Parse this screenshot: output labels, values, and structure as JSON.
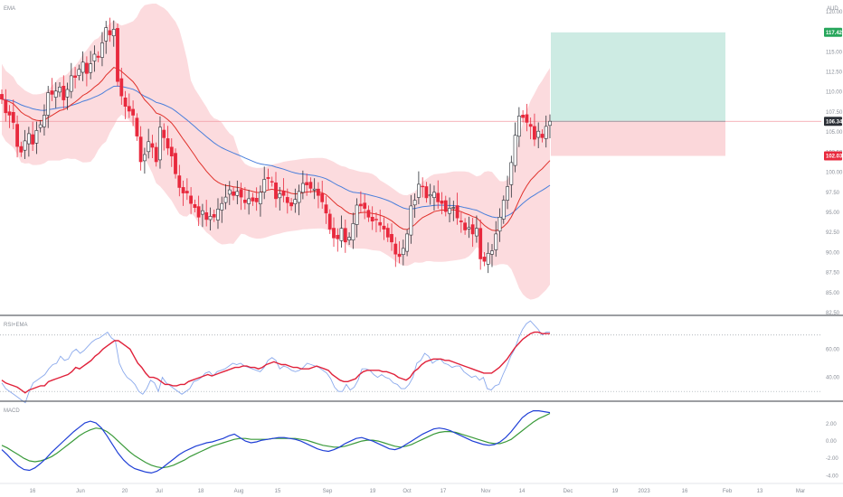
{
  "main": {
    "label": "EMA",
    "currency": "AUD",
    "price_ticks": [
      "120.00",
      "117.50",
      "115.00",
      "112.50",
      "110.00",
      "107.50",
      "105.00",
      "102.50",
      "100.00",
      "97.50",
      "95.00",
      "92.50",
      "90.00",
      "87.50",
      "85.00",
      "82.50"
    ],
    "price_tick_values": [
      120,
      117.5,
      115,
      112.5,
      110,
      107.5,
      105,
      102.5,
      100,
      97.5,
      95,
      92.5,
      90,
      87.5,
      85,
      82.5
    ],
    "current_price_label": "106.34",
    "take_profit_label": "117.42",
    "stop_loss_label": "102.03"
  },
  "rsi": {
    "label": "RSI+EMA",
    "ticks": [
      "60.00",
      "40.00"
    ],
    "tick_values": [
      60,
      40
    ]
  },
  "macd": {
    "label": "MACD",
    "ticks": [
      "2.00",
      "0.00",
      "-2.00",
      "-4.00"
    ],
    "tick_values": [
      2,
      0,
      -2,
      -4
    ]
  },
  "time_axis": {
    "labels": [
      "16",
      "Jun",
      "20",
      "Jul",
      "18",
      "Aug",
      "15",
      "Sep",
      "19",
      "Oct",
      "17",
      "Nov",
      "14",
      "Dec",
      "19",
      "2023",
      "16",
      "Feb",
      "13",
      "Mar"
    ]
  },
  "colors": {
    "up_candle": "#ffffff",
    "down_candle": "#e8293d",
    "bollinger_fill": "#fcd5d8",
    "ema_fast": "#e0312b",
    "ema_slow": "#4a7fdb",
    "rsi_line": "#8aa9ec",
    "rsi_ema": "#e0213a",
    "macd_line": "#1f3fd6",
    "signal_line": "#3a9a3a",
    "target_zone": "#cdebe3",
    "stop_zone": "#fbd7da",
    "take_profit_badge": "#26a65b",
    "stop_loss_badge": "#e8293d"
  },
  "chart_data": [
    {
      "type": "candlestick",
      "title": "",
      "ylabel": "AUD",
      "ylim": [
        82.5,
        121
      ],
      "x": [
        "16",
        "Jun",
        "20",
        "Jul",
        "18",
        "Aug",
        "15",
        "Sep",
        "19",
        "Oct",
        "17",
        "Nov",
        "14",
        "Dec",
        "19",
        "2023",
        "16",
        "Feb",
        "13",
        "Mar"
      ],
      "closes": [
        109.1,
        107.4,
        107.1,
        106.2,
        103.2,
        102.5,
        103.9,
        104.8,
        103.5,
        105.2,
        105.9,
        107.1,
        109.9,
        109.7,
        110.1,
        110.6,
        109.0,
        110.3,
        112.0,
        111.8,
        112.8,
        113.7,
        112.3,
        113.5,
        114.7,
        114.3,
        116.1,
        118.0,
        117.1,
        117.8,
        111.3,
        109.5,
        108.2,
        107.6,
        107.1,
        104.5,
        101.3,
        102.2,
        103.8,
        103.1,
        101.3,
        105.6,
        104.3,
        103.0,
        102.0,
        99.8,
        98.1,
        97.4,
        97.4,
        96.1,
        95.6,
        94.4,
        95.2,
        94.1,
        94.5,
        94.4,
        95.4,
        96.1,
        96.9,
        97.8,
        97.1,
        97.6,
        96.9,
        96.2,
        96.7,
        96.4,
        96.3,
        97.5,
        99.1,
        99.2,
        98.8,
        96.7,
        97.3,
        97.1,
        96.2,
        95.8,
        96.6,
        97.6,
        98.6,
        98.4,
        98.0,
        97.9,
        97.1,
        96.3,
        94.9,
        92.9,
        91.8,
        91.7,
        93.0,
        91.3,
        91.9,
        93.6,
        95.9,
        95.8,
        95.5,
        94.4,
        93.9,
        94.1,
        93.4,
        92.9,
        91.9,
        91.3,
        89.8,
        89.5,
        90.5,
        92.3,
        95.8,
        96.5,
        98.5,
        98.2,
        96.8,
        97.2,
        97.5,
        96.3,
        96.1,
        95.1,
        95.5,
        95.6,
        94.3,
        93.8,
        92.8,
        93.1,
        92.3,
        93.0,
        89.2,
        88.9,
        89.9,
        90.2,
        92.3,
        94.4,
        96.5,
        98.2,
        101.2,
        104.6,
        107.0,
        106.8,
        106.2,
        105.7,
        104.1,
        105.1,
        104.3,
        105.7,
        106.34
      ],
      "overlays": [
        "Bollinger bands",
        "EMA (fast, red)",
        "EMA (slow, blue)"
      ],
      "annotations": {
        "entry": 106.34,
        "take_profit": 117.42,
        "stop_loss": 102.03,
        "position": "long"
      }
    },
    {
      "type": "line",
      "title": "RSI+EMA",
      "ylim": [
        25,
        82
      ],
      "series": [
        {
          "values": [
            38,
            36,
            35,
            34,
            33,
            31,
            29,
            31,
            32,
            33,
            34,
            34,
            37,
            38,
            39,
            40,
            41,
            42,
            44,
            47,
            46,
            48,
            50,
            52,
            55,
            57,
            60,
            62,
            64,
            66,
            66,
            64,
            62,
            60,
            55,
            50,
            47,
            43,
            40,
            40,
            39,
            37,
            35,
            35,
            34,
            34,
            35,
            35,
            37,
            38,
            39,
            40,
            41,
            42,
            41,
            42,
            43,
            44,
            45,
            46,
            47,
            47,
            48,
            48,
            47,
            47,
            46,
            47,
            49,
            50,
            51,
            50,
            49,
            49,
            48,
            47,
            47,
            46,
            46,
            46,
            47,
            48,
            47,
            46,
            45,
            42,
            40,
            38,
            37,
            37,
            38,
            39,
            42,
            44,
            45,
            45,
            45,
            45,
            44,
            44,
            43,
            42,
            40,
            39,
            38,
            40,
            44,
            46,
            49,
            51,
            52,
            53,
            53,
            53,
            52,
            52,
            51,
            50,
            49,
            48,
            47,
            46,
            45,
            44,
            43,
            43,
            43,
            45,
            47,
            50,
            53,
            57,
            61,
            64,
            67,
            69,
            71,
            72,
            72,
            71,
            71,
            71
          ]
        },
        {
          "values": [
            36,
            32,
            30,
            28,
            26,
            24,
            22,
            30,
            36,
            38,
            40,
            42,
            46,
            49,
            50,
            55,
            52,
            53,
            58,
            60,
            57,
            59,
            62,
            65,
            67,
            68,
            70,
            72,
            68,
            66,
            50,
            44,
            40,
            38,
            35,
            30,
            28,
            32,
            38,
            36,
            30,
            40,
            36,
            34,
            32,
            30,
            28,
            30,
            32,
            37,
            38,
            40,
            43,
            44,
            41,
            44,
            45,
            46,
            48,
            50,
            49,
            50,
            48,
            47,
            46,
            45,
            44,
            47,
            52,
            54,
            52,
            46,
            48,
            47,
            45,
            44,
            45,
            47,
            50,
            49,
            48,
            47,
            45,
            43,
            39,
            33,
            30,
            30,
            35,
            31,
            33,
            38,
            46,
            46,
            45,
            42,
            40,
            42,
            40,
            39,
            36,
            35,
            32,
            32,
            35,
            40,
            50,
            52,
            57,
            55,
            50,
            52,
            53,
            50,
            49,
            47,
            48,
            48,
            44,
            42,
            40,
            41,
            38,
            40,
            32,
            31,
            34,
            35,
            42,
            48,
            55,
            60,
            68,
            74,
            78,
            80,
            77,
            74,
            70,
            72,
            72
          ]
        }
      ]
    },
    {
      "type": "line",
      "title": "MACD",
      "ylim": [
        -4.6,
        4.3
      ],
      "series": [
        {
          "values": [
            -1.0,
            -1.6,
            -2.3,
            -2.9,
            -3.3,
            -3.4,
            -3.1,
            -2.6,
            -2.0,
            -1.3,
            -0.7,
            -0.1,
            0.5,
            1.1,
            1.6,
            2.1,
            2.3,
            2.1,
            1.5,
            0.6,
            -0.4,
            -1.4,
            -2.2,
            -2.8,
            -3.2,
            -3.4,
            -3.6,
            -3.7,
            -3.5,
            -3.1,
            -2.6,
            -2.1,
            -1.6,
            -1.2,
            -0.9,
            -0.6,
            -0.4,
            -0.2,
            -0.1,
            0.1,
            0.3,
            0.6,
            0.8,
            0.4,
            0.0,
            -0.2,
            -0.1,
            0.1,
            0.2,
            0.3,
            0.4,
            0.4,
            0.3,
            0.2,
            0.0,
            -0.3,
            -0.6,
            -0.9,
            -1.1,
            -1.2,
            -1.0,
            -0.7,
            -0.3,
            0.0,
            0.3,
            0.4,
            0.2,
            0.0,
            -0.3,
            -0.6,
            -0.9,
            -1.0,
            -0.8,
            -0.4,
            0.0,
            0.4,
            0.8,
            1.1,
            1.4,
            1.5,
            1.4,
            1.2,
            0.9,
            0.6,
            0.3,
            0.0,
            -0.2,
            -0.4,
            -0.5,
            -0.4,
            -0.1,
            0.4,
            1.1,
            1.9,
            2.7,
            3.2,
            3.5,
            3.5,
            3.4,
            3.3
          ]
        },
        {
          "values": [
            -0.5,
            -0.8,
            -1.2,
            -1.6,
            -2.0,
            -2.3,
            -2.4,
            -2.3,
            -2.1,
            -1.8,
            -1.4,
            -0.9,
            -0.4,
            0.1,
            0.6,
            1.0,
            1.3,
            1.5,
            1.4,
            1.1,
            0.6,
            0.0,
            -0.6,
            -1.2,
            -1.7,
            -2.1,
            -2.5,
            -2.8,
            -3.0,
            -3.1,
            -3.0,
            -2.8,
            -2.5,
            -2.2,
            -1.8,
            -1.5,
            -1.2,
            -0.9,
            -0.6,
            -0.4,
            -0.2,
            0.0,
            0.2,
            0.3,
            0.3,
            0.2,
            0.2,
            0.2,
            0.2,
            0.3,
            0.3,
            0.3,
            0.3,
            0.3,
            0.2,
            0.1,
            -0.1,
            -0.3,
            -0.5,
            -0.6,
            -0.7,
            -0.7,
            -0.6,
            -0.4,
            -0.2,
            0.0,
            0.1,
            0.1,
            0.0,
            -0.2,
            -0.4,
            -0.6,
            -0.7,
            -0.6,
            -0.4,
            -0.1,
            0.2,
            0.5,
            0.8,
            1.0,
            1.1,
            1.1,
            1.0,
            0.8,
            0.6,
            0.4,
            0.2,
            0.0,
            -0.2,
            -0.3,
            -0.3,
            -0.1,
            0.2,
            0.7,
            1.2,
            1.7,
            2.2,
            2.6,
            2.9,
            3.2
          ]
        }
      ]
    }
  ]
}
